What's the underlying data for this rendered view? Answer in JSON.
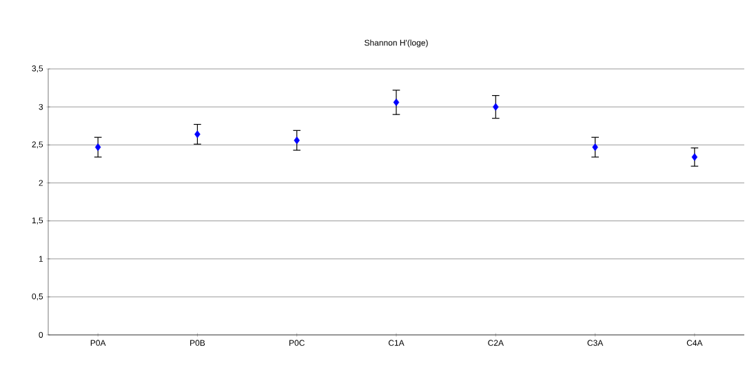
{
  "chart_data": {
    "type": "scatter",
    "title": "Shannon H'(loge)",
    "categories": [
      "P0A",
      "P0B",
      "P0C",
      "C1A",
      "C2A",
      "C3A",
      "C4A"
    ],
    "values": [
      2.47,
      2.64,
      2.56,
      3.06,
      3.0,
      2.47,
      2.34
    ],
    "errors": [
      0.13,
      0.13,
      0.13,
      0.16,
      0.15,
      0.13,
      0.12
    ],
    "color": "#0000ff",
    "marker": "diamond",
    "ylim": [
      0,
      3.5
    ],
    "yticks": [
      0,
      {
        "value": 0.5,
        "label": "0,5"
      },
      1,
      {
        "value": 1.5,
        "label": "1,5"
      },
      2,
      {
        "value": 2.5,
        "label": "2,5"
      },
      3,
      {
        "value": 3.5,
        "label": "3,5"
      }
    ],
    "grid": "y"
  }
}
